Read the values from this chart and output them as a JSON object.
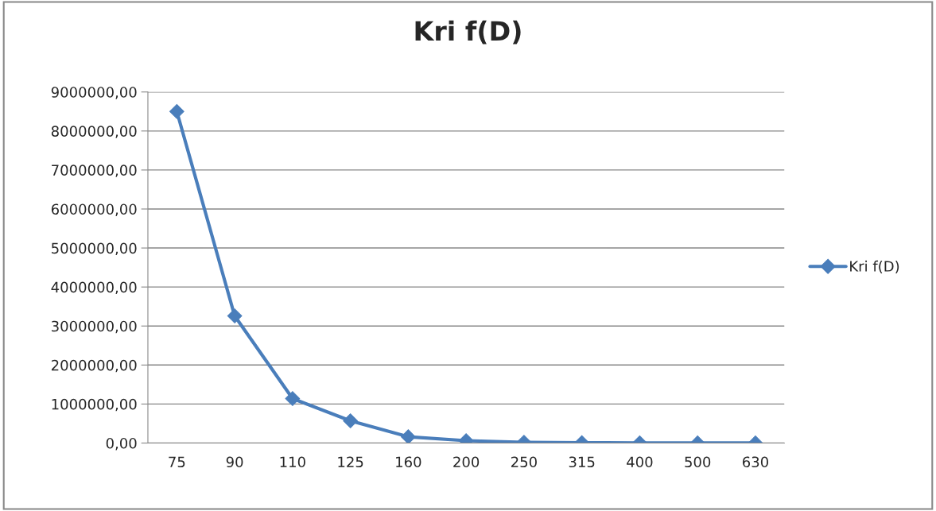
{
  "chart_data": {
    "type": "line",
    "title": "Kri f(D)",
    "categories": [
      "75",
      "90",
      "110",
      "125",
      "160",
      "200",
      "250",
      "315",
      "400",
      "500",
      "630"
    ],
    "series": [
      {
        "name": "Kri f(D)",
        "color": "#4a7ebb",
        "values": [
          8500000,
          3260000,
          1140000,
          570000,
          160000,
          60000,
          20000,
          10000,
          5000,
          2000,
          1000
        ]
      }
    ],
    "ylim": [
      0,
      9000000
    ],
    "yticks": [
      {
        "value": 0,
        "label": "0,00"
      },
      {
        "value": 1000000,
        "label": "1000000,00"
      },
      {
        "value": 2000000,
        "label": "2000000,00"
      },
      {
        "value": 3000000,
        "label": "3000000,00"
      },
      {
        "value": 4000000,
        "label": "4000000,00"
      },
      {
        "value": 5000000,
        "label": "5000000,00"
      },
      {
        "value": 6000000,
        "label": "6000000,00"
      },
      {
        "value": 7000000,
        "label": "7000000,00"
      },
      {
        "value": 8000000,
        "label": "8000000,00"
      },
      {
        "value": 9000000,
        "label": "9000000,00"
      }
    ],
    "grid": "y",
    "legend": "right",
    "marker": "diamond",
    "line_style": "solid"
  }
}
